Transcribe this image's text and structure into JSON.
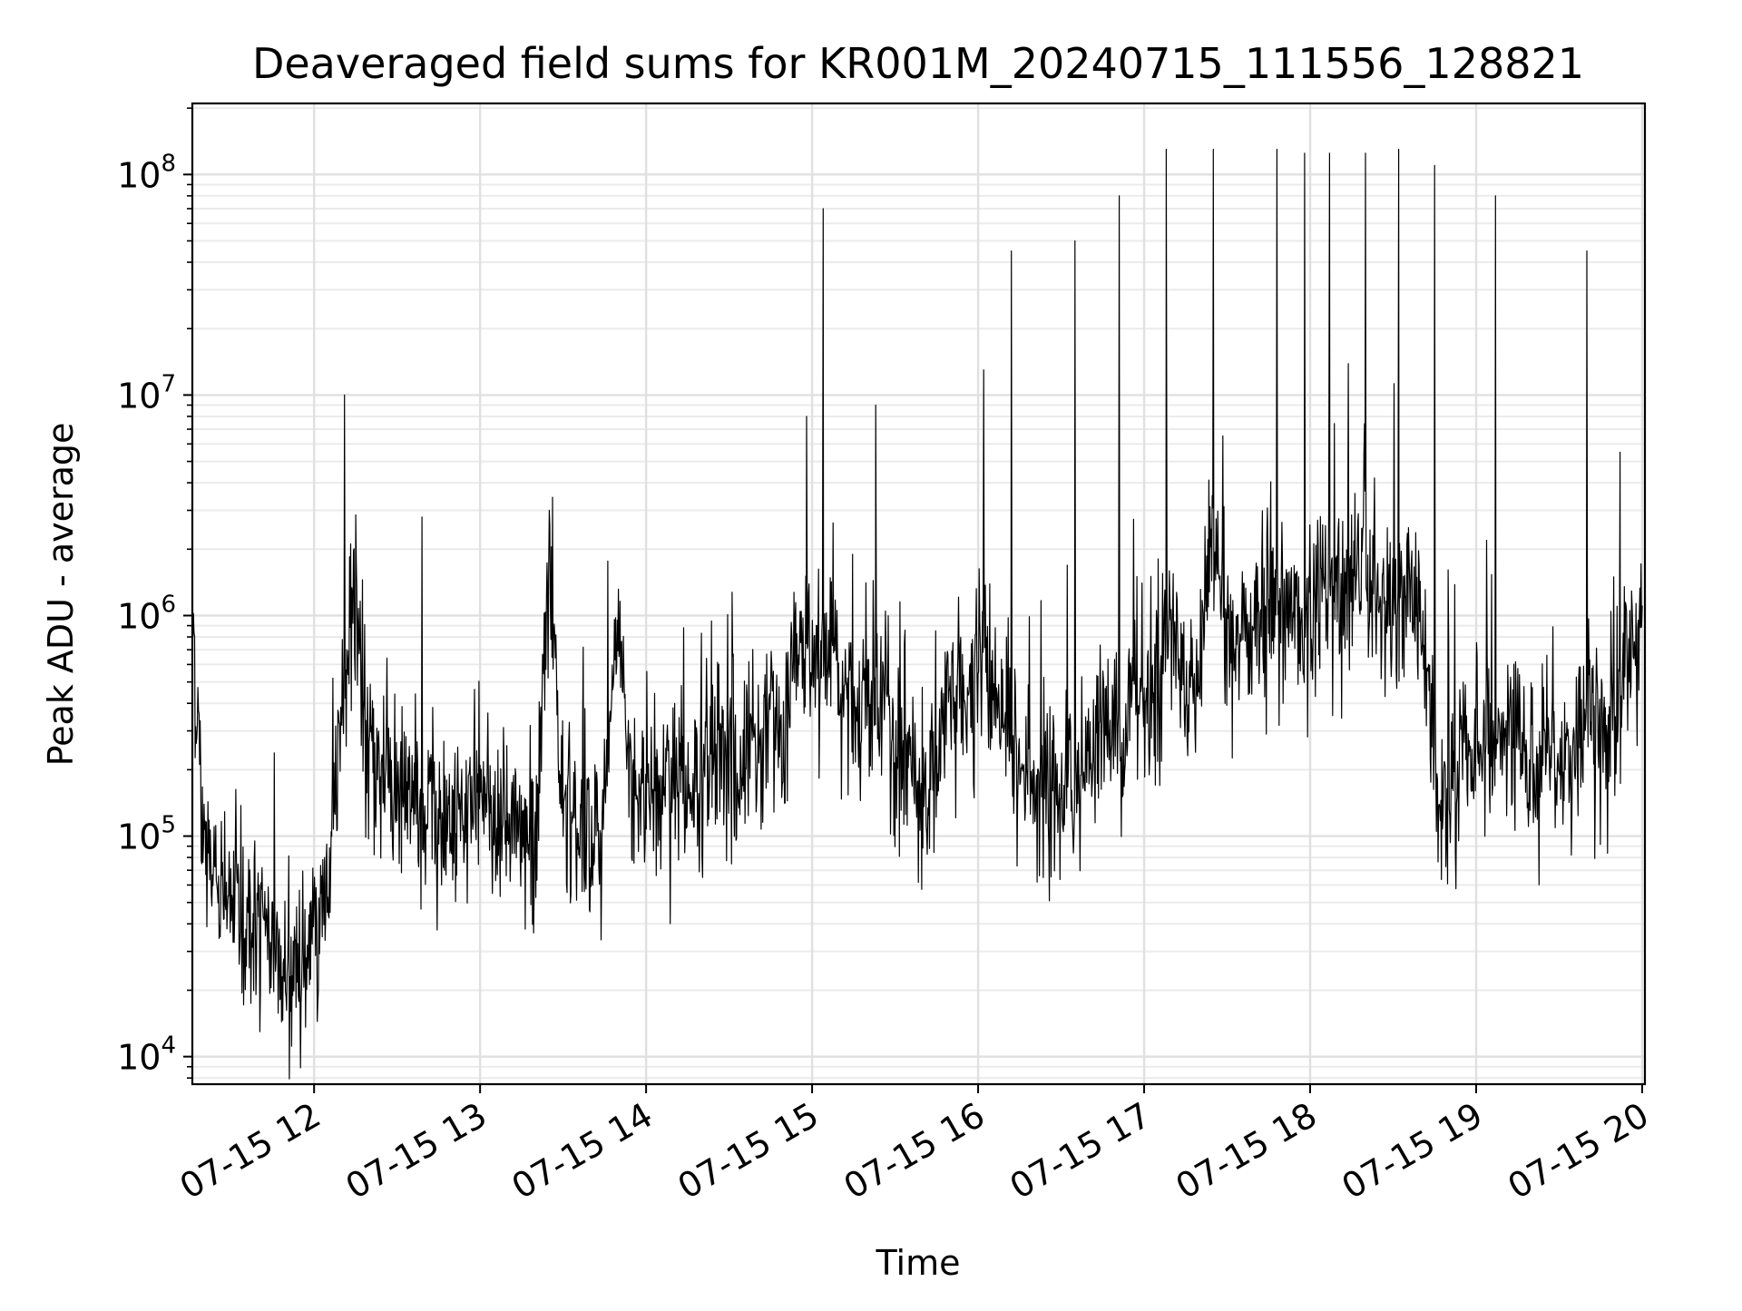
{
  "chart_data": {
    "type": "line",
    "title": "Deaveraged field sums for KR001M_20240715_111556_128821",
    "xlabel": "Time",
    "ylabel": "Peak ADU - average",
    "xlim": [
      "2024-07-15 11:16",
      "2024-07-15 20:01"
    ],
    "ylim": [
      7500,
      210000000
    ],
    "yscale": "log",
    "grid": true,
    "x_ticks": [
      "07-15 12",
      "07-15 13",
      "07-15 14",
      "07-15 15",
      "07-15 16",
      "07-15 17",
      "07-15 18",
      "07-15 19",
      "07-15 20"
    ],
    "y_ticks": [
      {
        "base": "10",
        "exp": "4",
        "value": 10000
      },
      {
        "base": "10",
        "exp": "5",
        "value": 100000
      },
      {
        "base": "10",
        "exp": "6",
        "value": 1000000
      },
      {
        "base": "10",
        "exp": "7",
        "value": 10000000
      },
      {
        "base": "10",
        "exp": "8",
        "value": 100000000
      }
    ],
    "series": [
      {
        "color": "#000000",
        "x": [
          "2024-07-15 11:16",
          "2024-07-15 11:20",
          "2024-07-15 11:25",
          "2024-07-15 11:30",
          "2024-07-15 11:35",
          "2024-07-15 11:40",
          "2024-07-15 11:45",
          "2024-07-15 11:50",
          "2024-07-15 11:55",
          "2024-07-15 12:00",
          "2024-07-15 12:05",
          "2024-07-15 12:10",
          "2024-07-15 12:15",
          "2024-07-15 12:20",
          "2024-07-15 12:25",
          "2024-07-15 12:30",
          "2024-07-15 12:35",
          "2024-07-15 12:40",
          "2024-07-15 12:45",
          "2024-07-15 12:50",
          "2024-07-15 12:55",
          "2024-07-15 13:00",
          "2024-07-15 13:05",
          "2024-07-15 13:10",
          "2024-07-15 13:15",
          "2024-07-15 13:20",
          "2024-07-15 13:25",
          "2024-07-15 13:30",
          "2024-07-15 13:35",
          "2024-07-15 13:40",
          "2024-07-15 13:45",
          "2024-07-15 13:50",
          "2024-07-15 13:55",
          "2024-07-15 14:00",
          "2024-07-15 14:05",
          "2024-07-15 14:10",
          "2024-07-15 14:15",
          "2024-07-15 14:20",
          "2024-07-15 14:25",
          "2024-07-15 14:30",
          "2024-07-15 14:35",
          "2024-07-15 14:40",
          "2024-07-15 14:45",
          "2024-07-15 14:50",
          "2024-07-15 14:55",
          "2024-07-15 15:00",
          "2024-07-15 15:05",
          "2024-07-15 15:10",
          "2024-07-15 15:15",
          "2024-07-15 15:20",
          "2024-07-15 15:25",
          "2024-07-15 15:30",
          "2024-07-15 15:35",
          "2024-07-15 15:40",
          "2024-07-15 15:45",
          "2024-07-15 15:50",
          "2024-07-15 15:55",
          "2024-07-15 16:00",
          "2024-07-15 16:05",
          "2024-07-15 16:10",
          "2024-07-15 16:15",
          "2024-07-15 16:20",
          "2024-07-15 16:25",
          "2024-07-15 16:30",
          "2024-07-15 16:35",
          "2024-07-15 16:40",
          "2024-07-15 16:45",
          "2024-07-15 16:50",
          "2024-07-15 16:55",
          "2024-07-15 17:00",
          "2024-07-15 17:05",
          "2024-07-15 17:10",
          "2024-07-15 17:15",
          "2024-07-15 17:20",
          "2024-07-15 17:25",
          "2024-07-15 17:30",
          "2024-07-15 17:35",
          "2024-07-15 17:40",
          "2024-07-15 17:45",
          "2024-07-15 17:50",
          "2024-07-15 17:55",
          "2024-07-15 18:00",
          "2024-07-15 18:05",
          "2024-07-15 18:10",
          "2024-07-15 18:15",
          "2024-07-15 18:20",
          "2024-07-15 18:25",
          "2024-07-15 18:30",
          "2024-07-15 18:35",
          "2024-07-15 18:40",
          "2024-07-15 18:45",
          "2024-07-15 18:50",
          "2024-07-15 18:55",
          "2024-07-15 19:00",
          "2024-07-15 19:05",
          "2024-07-15 19:10",
          "2024-07-15 19:15",
          "2024-07-15 19:20",
          "2024-07-15 19:25",
          "2024-07-15 19:30",
          "2024-07-15 19:35",
          "2024-07-15 19:40",
          "2024-07-15 19:45",
          "2024-07-15 19:50",
          "2024-07-15 19:55",
          "2024-07-15 20:00"
        ],
        "y": [
          1100000,
          90000,
          60000,
          50000,
          45000,
          38000,
          30000,
          25000,
          22000,
          40000,
          60000,
          400000,
          1200000,
          200000,
          180000,
          150000,
          140000,
          130000,
          120000,
          110000,
          130000,
          140000,
          120000,
          100000,
          90000,
          80000,
          1800000,
          130000,
          120000,
          110000,
          130000,
          800000,
          150000,
          160000,
          170000,
          180000,
          160000,
          200000,
          300000,
          220000,
          200000,
          250000,
          350000,
          300000,
          800000,
          600000,
          700000,
          500000,
          400000,
          450000,
          500000,
          300000,
          200000,
          150000,
          180000,
          500000,
          400000,
          700000,
          500000,
          300000,
          200000,
          180000,
          150000,
          170000,
          160000,
          250000,
          350000,
          300000,
          400000,
          450000,
          500000,
          1000000,
          400000,
          600000,
          3000000,
          700000,
          800000,
          900000,
          1000000,
          1200000,
          900000,
          1100000,
          1200000,
          1300000,
          1100000,
          1500000,
          1000000,
          1200000,
          1500000,
          1000000,
          200000,
          150000,
          200000,
          250000,
          300000,
          350000,
          250000,
          220000,
          300000,
          250000,
          200000,
          350000,
          300000,
          350000,
          600000,
          900000
        ],
        "spikes": [
          {
            "x": "2024-07-15 11:16",
            "y": 1100000
          },
          {
            "x": "2024-07-15 12:11",
            "y": 10000000
          },
          {
            "x": "2024-07-15 12:39",
            "y": 2800000
          },
          {
            "x": "2024-07-15 13:25",
            "y": 3000000
          },
          {
            "x": "2024-07-15 14:58",
            "y": 8000000
          },
          {
            "x": "2024-07-15 15:04",
            "y": 70000000
          },
          {
            "x": "2024-07-15 15:23",
            "y": 9000000
          },
          {
            "x": "2024-07-15 16:02",
            "y": 13000000
          },
          {
            "x": "2024-07-15 16:12",
            "y": 45000000
          },
          {
            "x": "2024-07-15 16:35",
            "y": 50000000
          },
          {
            "x": "2024-07-15 16:51",
            "y": 80000000
          },
          {
            "x": "2024-07-15 17:08",
            "y": 130000000
          },
          {
            "x": "2024-07-15 17:25",
            "y": 130000000
          },
          {
            "x": "2024-07-15 17:48",
            "y": 130000000
          },
          {
            "x": "2024-07-15 17:58",
            "y": 125000000
          },
          {
            "x": "2024-07-15 18:07",
            "y": 125000000
          },
          {
            "x": "2024-07-15 18:20",
            "y": 125000000
          },
          {
            "x": "2024-07-15 18:32",
            "y": 130000000
          },
          {
            "x": "2024-07-15 18:45",
            "y": 110000000
          },
          {
            "x": "2024-07-15 19:07",
            "y": 80000000
          },
          {
            "x": "2024-07-15 19:40",
            "y": 45000000
          },
          {
            "x": "2024-07-15 19:52",
            "y": 5500000
          }
        ]
      }
    ]
  }
}
